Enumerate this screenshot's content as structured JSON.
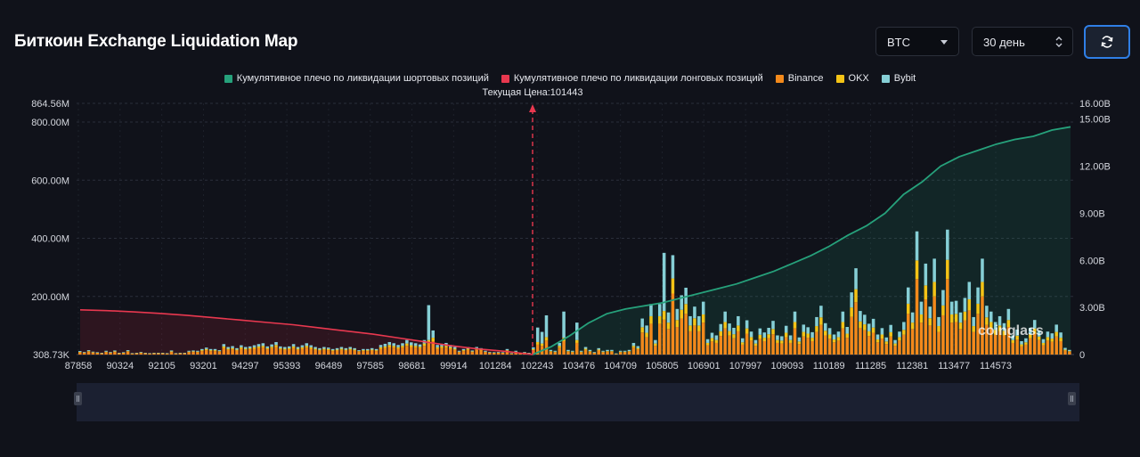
{
  "header": {
    "title": "Биткоин Exchange Liquidation Map",
    "coin_select": "BTC",
    "period_select": "30 день"
  },
  "watermark": "coinglass",
  "chart_data": {
    "type": "bar",
    "current_price_label": "Текущая Цена:101443",
    "current_price": 101443,
    "legend": [
      {
        "name": "Кумулятивное плечо по ликвидации шортовых позиций",
        "color": "#26a17b"
      },
      {
        "name": "Кумулятивное плечо по ликвидации лонговых позиций",
        "color": "#e8384f"
      },
      {
        "name": "Binance",
        "color": "#f3891b"
      },
      {
        "name": "OKX",
        "color": "#f4c316"
      },
      {
        "name": "Bybit",
        "color": "#86cfd6"
      }
    ],
    "x_ticks": [
      "87858",
      "90324",
      "92105",
      "93201",
      "94297",
      "95393",
      "96489",
      "97585",
      "98681",
      "99914",
      "101284",
      "102243",
      "103476",
      "104709",
      "105805",
      "106901",
      "107997",
      "109093",
      "110189",
      "111285",
      "112381",
      "113477",
      "114573"
    ],
    "y_left_ticks": [
      "864.56M",
      "800.00M",
      "600.00M",
      "400.00M",
      "200.00M",
      "308.73K"
    ],
    "y_left_range": [
      0.30873,
      864.56
    ],
    "y_right_ticks": [
      "16.00B",
      "15.00B",
      "12.00B",
      "9.00B",
      "6.00B",
      "3.00B",
      "0"
    ],
    "y_right_range": [
      0,
      16
    ],
    "grid": true,
    "bars_binance": [
      8,
      6,
      10,
      7,
      5,
      4,
      8,
      6,
      9,
      4,
      5,
      10,
      3,
      4,
      6,
      4,
      3,
      4,
      4,
      4,
      3,
      9,
      3,
      4,
      4,
      8,
      9,
      8,
      12,
      15,
      12,
      12,
      10,
      22,
      16,
      18,
      14,
      20,
      16,
      18,
      20,
      22,
      24,
      18,
      22,
      26,
      18,
      16,
      18,
      22,
      16,
      20,
      24,
      20,
      16,
      14,
      16,
      15,
      12,
      14,
      16,
      14,
      16,
      14,
      10,
      12,
      12,
      14,
      12,
      20,
      22,
      26,
      24,
      20,
      24,
      30,
      26,
      24,
      22,
      30,
      40,
      46,
      20,
      22,
      24,
      20,
      16,
      8,
      12,
      16,
      9,
      16,
      14,
      8,
      6,
      5,
      6,
      5,
      12,
      3,
      8,
      4,
      6,
      4,
      15,
      34,
      30,
      48,
      10,
      8,
      24,
      46,
      10,
      8,
      40,
      8,
      16,
      10,
      6,
      14,
      8,
      10,
      10,
      2,
      8,
      8,
      10,
      24,
      18,
      76,
      60,
      106,
      30,
      106,
      120,
      88,
      210,
      95,
      124,
      140,
      80,
      100,
      80,
      110,
      32,
      45,
      40,
      64,
      90,
      65,
      56,
      80,
      34,
      72,
      48,
      30,
      54,
      46,
      56,
      70,
      40,
      38,
      60,
      40,
      90,
      36,
      62,
      58,
      46,
      78,
      102,
      66,
      55,
      42,
      48,
      90,
      58,
      130,
      180,
      92,
      84,
      64,
      75,
      42,
      55,
      36,
      62,
      30,
      48,
      68,
      140,
      88,
      260,
      110,
      190,
      100,
      200,
      78,
      135,
      260,
      110,
      112,
      88,
      118,
      152,
      78,
      140,
      200,
      102,
      90,
      68,
      80,
      66,
      95,
      40,
      52,
      28,
      34,
      56,
      72,
      50,
      32,
      48,
      44,
      62,
      46,
      14,
      10
    ],
    "bars_okx": [
      1,
      1,
      2,
      1,
      1,
      1,
      2,
      1,
      2,
      1,
      1,
      2,
      1,
      1,
      1,
      1,
      1,
      1,
      1,
      1,
      1,
      2,
      1,
      1,
      1,
      2,
      2,
      2,
      3,
      4,
      3,
      3,
      2,
      6,
      4,
      4,
      3,
      5,
      4,
      4,
      5,
      6,
      6,
      4,
      5,
      7,
      4,
      4,
      4,
      6,
      4,
      5,
      6,
      5,
      4,
      3,
      4,
      4,
      3,
      3,
      4,
      3,
      4,
      3,
      2,
      3,
      3,
      3,
      3,
      5,
      6,
      7,
      6,
      5,
      6,
      8,
      6,
      6,
      5,
      8,
      10,
      12,
      5,
      6,
      6,
      5,
      4,
      2,
      3,
      4,
      2,
      4,
      3,
      2,
      1,
      1,
      1,
      1,
      3,
      1,
      2,
      1,
      1,
      1,
      4,
      9,
      8,
      12,
      2,
      2,
      6,
      12,
      2,
      2,
      10,
      2,
      4,
      2,
      1,
      3,
      2,
      2,
      2,
      1,
      2,
      2,
      2,
      6,
      4,
      18,
      15,
      26,
      8,
      26,
      30,
      22,
      52,
      24,
      30,
      34,
      20,
      25,
      20,
      28,
      8,
      12,
      10,
      16,
      22,
      16,
      14,
      20,
      8,
      18,
      12,
      8,
      14,
      12,
      14,
      18,
      10,
      10,
      15,
      10,
      22,
      9,
      16,
      14,
      12,
      20,
      26,
      16,
      14,
      10,
      12,
      22,
      14,
      32,
      45,
      22,
      20,
      16,
      18,
      10,
      14,
      9,
      15,
      8,
      12,
      17,
      35,
      22,
      64,
      28,
      48,
      25,
      50,
      20,
      34,
      66,
      28,
      28,
      22,
      30,
      38,
      20,
      35,
      50,
      26,
      22,
      17,
      20,
      16,
      24,
      10,
      13,
      7,
      8,
      14,
      18,
      12,
      8,
      12,
      11,
      16,
      12,
      3,
      2
    ],
    "bars_bybit": [
      3,
      2,
      3,
      2,
      2,
      1,
      3,
      2,
      3,
      1,
      2,
      3,
      1,
      1,
      2,
      1,
      1,
      1,
      1,
      1,
      1,
      3,
      1,
      1,
      1,
      3,
      3,
      3,
      4,
      5,
      4,
      4,
      3,
      8,
      6,
      7,
      5,
      7,
      6,
      6,
      7,
      8,
      9,
      6,
      8,
      10,
      6,
      6,
      6,
      8,
      6,
      7,
      9,
      7,
      6,
      5,
      6,
      5,
      4,
      5,
      6,
      5,
      6,
      5,
      3,
      4,
      4,
      5,
      4,
      8,
      9,
      10,
      9,
      8,
      9,
      12,
      10,
      9,
      8,
      12,
      120,
      25,
      8,
      9,
      10,
      8,
      6,
      3,
      4,
      6,
      3,
      6,
      5,
      3,
      2,
      2,
      2,
      2,
      4,
      1,
      3,
      1,
      2,
      1,
      6,
      50,
      40,
      75,
      4,
      3,
      10,
      90,
      4,
      3,
      60,
      3,
      6,
      4,
      2,
      5,
      3,
      4,
      4,
      1,
      3,
      3,
      4,
      10,
      7,
      30,
      25,
      42,
      12,
      42,
      200,
      35,
      80,
      38,
      50,
      56,
      32,
      40,
      32,
      44,
      13,
      18,
      16,
      25,
      36,
      26,
      22,
      32,
      14,
      28,
      19,
      12,
      22,
      18,
      22,
      28,
      16,
      15,
      24,
      16,
      36,
      14,
      25,
      22,
      19,
      31,
      40,
      26,
      22,
      17,
      19,
      36,
      23,
      52,
      72,
      36,
      33,
      26,
      30,
      17,
      22,
      14,
      25,
      12,
      19,
      27,
      56,
      35,
      100,
      44,
      75,
      40,
      80,
      31,
      53,
      104,
      44,
      45,
      35,
      47,
      60,
      31,
      56,
      80,
      40,
      36,
      27,
      32,
      26,
      38,
      16,
      21,
      11,
      14,
      22,
      29,
      20,
      13,
      19,
      18,
      25,
      18,
      6,
      4
    ],
    "short_cumulative_B": [
      0,
      0.5,
      1.2,
      2.0,
      2.6,
      2.9,
      3.1,
      3.3,
      3.6,
      3.9,
      4.2,
      4.5,
      4.9,
      5.3,
      5.8,
      6.3,
      6.9,
      7.6,
      8.2,
      9.0,
      10.2,
      11.0,
      12.0,
      12.6,
      13.0,
      13.4,
      13.7,
      13.9,
      14.3,
      14.5
    ],
    "long_cumulative_B": [
      2.85,
      2.8,
      2.72,
      2.62,
      2.5,
      2.35,
      2.2,
      2.05,
      1.9,
      1.7,
      1.5,
      1.3,
      1.05,
      0.8,
      0.55,
      0.35,
      0.2,
      0
    ]
  }
}
